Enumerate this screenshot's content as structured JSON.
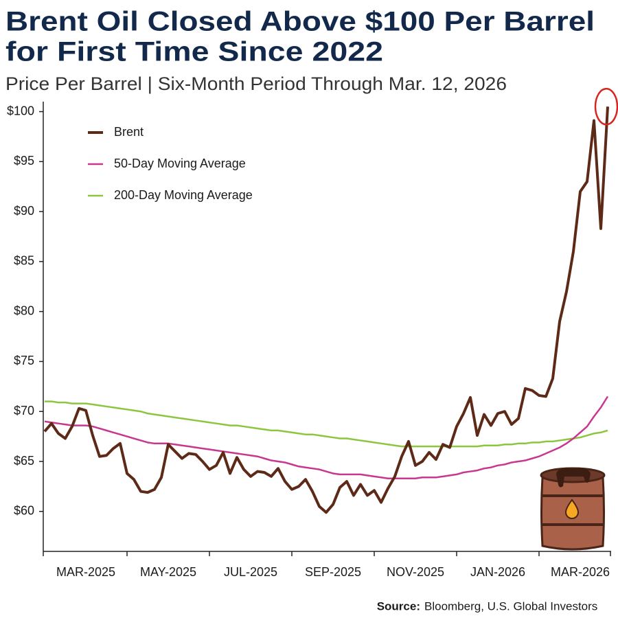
{
  "chart_data": {
    "type": "line",
    "title": [
      "Brent Oil Closed Above $100 Per Barrel",
      "for First Time Since 2022"
    ],
    "subtitle": "Price Per Barrel | Six-Month Period Through Mar. 12, 2026",
    "source_label": "Source:",
    "source": "Bloomberg, U.S. Global Investors",
    "categories": [
      null,
      null,
      null,
      null,
      null,
      null,
      "MAR-2025",
      null,
      null,
      null,
      null,
      null,
      null,
      null,
      null,
      null,
      null,
      null,
      "MAY-2025",
      null,
      null,
      null,
      null,
      null,
      null,
      null,
      null,
      null,
      null,
      null,
      "JUL-2025",
      null,
      null,
      null,
      null,
      null,
      null,
      null,
      null,
      null,
      null,
      null,
      "SEP-2025",
      null,
      null,
      null,
      null,
      null,
      null,
      null,
      null,
      null,
      null,
      null,
      "NOV-2025",
      null,
      null,
      null,
      null,
      null,
      null,
      null,
      null,
      null,
      null,
      null,
      "JAN-2026",
      null,
      null,
      null,
      null,
      null,
      null,
      null,
      null,
      null,
      null,
      null,
      "MAR-2026",
      null,
      null,
      null,
      null
    ],
    "series": [
      {
        "name": "Brent",
        "color": "#5c2a17",
        "values": [
          68.0,
          68.8,
          67.8,
          67.3,
          68.5,
          70.3,
          70.1,
          67.6,
          65.5,
          65.6,
          66.3,
          66.8,
          63.8,
          63.2,
          62.0,
          61.9,
          62.2,
          63.4,
          66.7,
          66.0,
          65.3,
          65.8,
          65.7,
          65.0,
          64.2,
          64.6,
          65.9,
          63.8,
          65.4,
          64.2,
          63.5,
          64.0,
          63.9,
          63.5,
          64.3,
          63.0,
          62.2,
          62.5,
          63.2,
          62.0,
          60.5,
          59.9,
          60.7,
          62.4,
          63.0,
          61.6,
          62.7,
          61.6,
          62.1,
          60.9,
          62.3,
          63.5,
          65.5,
          67.0,
          64.6,
          65.0,
          65.9,
          65.2,
          66.7,
          66.4,
          68.5,
          69.8,
          71.4,
          67.6,
          69.7,
          68.6,
          69.8,
          70.0,
          68.7,
          69.3,
          72.3,
          72.1,
          71.6,
          71.5,
          73.3,
          79.0,
          82.0,
          86.0,
          92.0,
          93.0,
          99.1,
          88.3,
          100.5
        ]
      },
      {
        "name": "50-Day Moving Average",
        "color": "#c8378f",
        "values": [
          69.0,
          68.9,
          68.8,
          68.7,
          68.6,
          68.6,
          68.6,
          68.5,
          68.3,
          68.1,
          67.9,
          67.7,
          67.5,
          67.3,
          67.1,
          66.9,
          66.8,
          66.8,
          66.8,
          66.7,
          66.6,
          66.5,
          66.4,
          66.3,
          66.2,
          66.1,
          66.0,
          65.9,
          65.8,
          65.7,
          65.6,
          65.5,
          65.3,
          65.1,
          65.0,
          64.9,
          64.7,
          64.5,
          64.4,
          64.3,
          64.2,
          64.0,
          63.8,
          63.7,
          63.7,
          63.7,
          63.7,
          63.6,
          63.5,
          63.4,
          63.3,
          63.3,
          63.3,
          63.3,
          63.3,
          63.4,
          63.4,
          63.4,
          63.5,
          63.6,
          63.7,
          63.9,
          64.0,
          64.1,
          64.3,
          64.4,
          64.6,
          64.7,
          64.9,
          65.0,
          65.1,
          65.3,
          65.5,
          65.8,
          66.1,
          66.4,
          66.8,
          67.3,
          67.9,
          68.5,
          69.5,
          70.4,
          71.5
        ]
      },
      {
        "name": "200-Day Moving Average",
        "color": "#8cc63f",
        "values": [
          71.0,
          71.0,
          70.9,
          70.9,
          70.8,
          70.8,
          70.8,
          70.7,
          70.6,
          70.5,
          70.4,
          70.3,
          70.2,
          70.1,
          70.0,
          69.8,
          69.7,
          69.6,
          69.5,
          69.4,
          69.3,
          69.2,
          69.1,
          69.0,
          68.9,
          68.8,
          68.7,
          68.6,
          68.6,
          68.5,
          68.4,
          68.3,
          68.2,
          68.1,
          68.1,
          68.0,
          67.9,
          67.8,
          67.7,
          67.7,
          67.6,
          67.5,
          67.4,
          67.3,
          67.3,
          67.2,
          67.1,
          67.0,
          66.9,
          66.8,
          66.7,
          66.6,
          66.5,
          66.5,
          66.5,
          66.5,
          66.5,
          66.5,
          66.5,
          66.5,
          66.5,
          66.5,
          66.5,
          66.5,
          66.6,
          66.6,
          66.6,
          66.7,
          66.7,
          66.8,
          66.8,
          66.9,
          66.9,
          67.0,
          67.0,
          67.1,
          67.2,
          67.3,
          67.4,
          67.6,
          67.8,
          67.9,
          68.1
        ]
      }
    ],
    "ylim": [
      56,
      101
    ],
    "yticks": [
      {
        "value": 60,
        "label": "$60"
      },
      {
        "value": 65,
        "label": "$65"
      },
      {
        "value": 70,
        "label": "$70"
      },
      {
        "value": 75,
        "label": "$75"
      },
      {
        "value": 80,
        "label": "$80"
      },
      {
        "value": 85,
        "label": "$85"
      },
      {
        "value": 90,
        "label": "$90"
      },
      {
        "value": 95,
        "label": "$95"
      },
      {
        "value": 100,
        "label": "$100"
      }
    ],
    "grid": false
  }
}
